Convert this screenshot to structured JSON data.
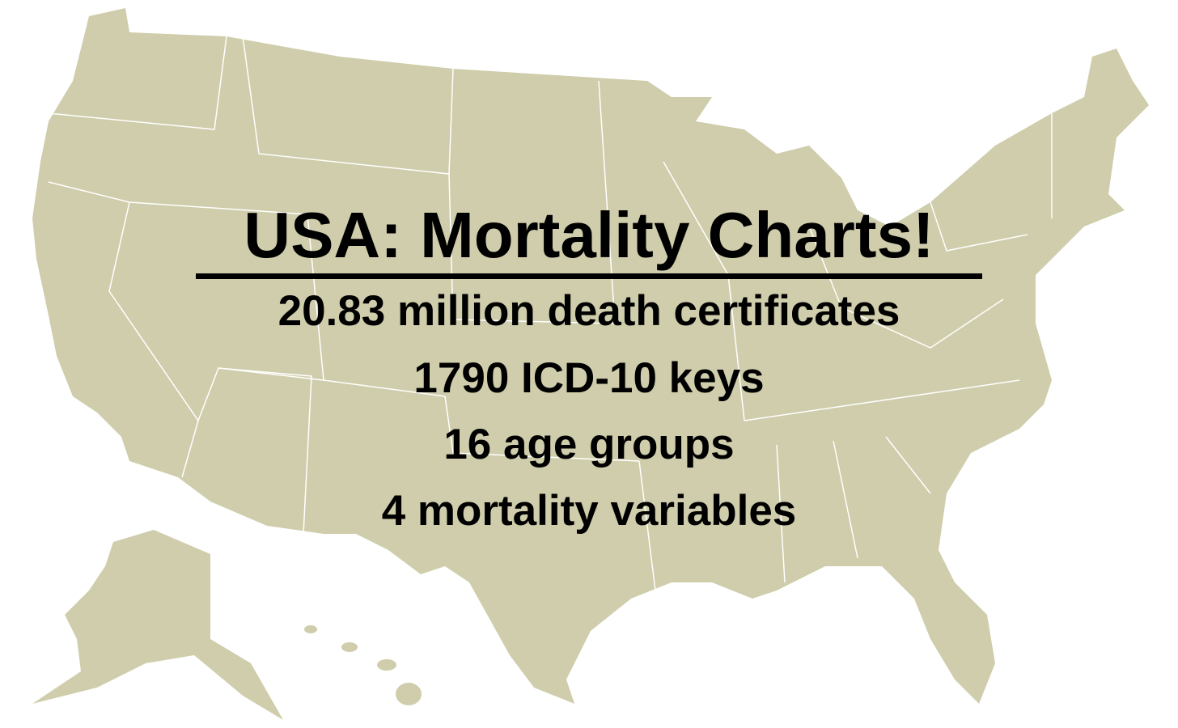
{
  "title": "USA: Mortality Charts!",
  "lines": [
    "20.83 million death certificates",
    "1790 ICD-10 keys",
    "16 age groups",
    "4 mortality variables"
  ]
}
